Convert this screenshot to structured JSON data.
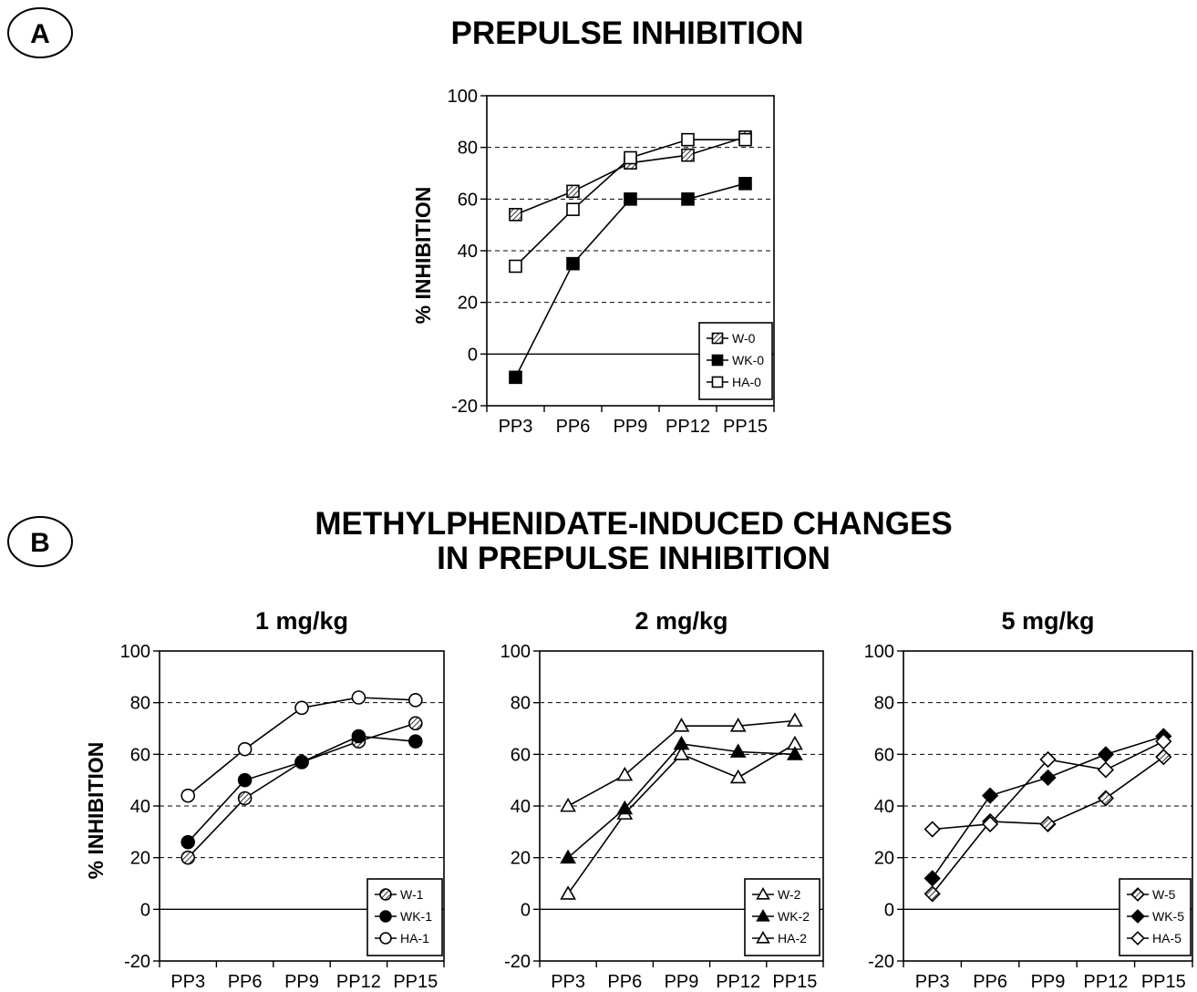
{
  "panel_a": {
    "letter": "A",
    "title": "PREPULSE INHIBITION"
  },
  "panel_b": {
    "letter": "B",
    "title_line1": "METHYLPHENIDATE-INDUCED CHANGES",
    "title_line2": "IN PREPULSE INHIBITION"
  },
  "chart_data": [
    {
      "id": "A",
      "type": "line",
      "title": "",
      "ylabel": "% INHIBITION",
      "xlabel": "",
      "categories": [
        "PP3",
        "PP6",
        "PP9",
        "PP12",
        "PP15"
      ],
      "ylim": [
        -20,
        100
      ],
      "yticks": [
        -20,
        0,
        20,
        40,
        60,
        80,
        100
      ],
      "grid": "horizontal dashed",
      "legend": "bottom-right",
      "series": [
        {
          "name": "W-0",
          "marker": "square-hatched",
          "values": [
            54,
            63,
            74,
            77,
            84
          ]
        },
        {
          "name": "WK-0",
          "marker": "square-filled",
          "values": [
            -9,
            35,
            60,
            60,
            66
          ]
        },
        {
          "name": "HA-0",
          "marker": "square-open",
          "values": [
            34,
            56,
            76,
            83,
            83
          ]
        }
      ]
    },
    {
      "id": "B1",
      "type": "line",
      "title": "1 mg/kg",
      "ylabel": "% INHIBITION",
      "xlabel": "",
      "categories": [
        "PP3",
        "PP6",
        "PP9",
        "PP12",
        "PP15"
      ],
      "ylim": [
        -20,
        100
      ],
      "yticks": [
        -20,
        0,
        20,
        40,
        60,
        80,
        100
      ],
      "grid": "horizontal dashed",
      "legend": "bottom-right",
      "series": [
        {
          "name": "W-1",
          "marker": "circle-hatched",
          "values": [
            20,
            43,
            57,
            65,
            72
          ]
        },
        {
          "name": "WK-1",
          "marker": "circle-filled",
          "values": [
            26,
            50,
            57,
            67,
            65
          ]
        },
        {
          "name": "HA-1",
          "marker": "circle-open",
          "values": [
            44,
            62,
            78,
            82,
            81
          ]
        }
      ]
    },
    {
      "id": "B2",
      "type": "line",
      "title": "2 mg/kg",
      "ylabel": "",
      "xlabel": "",
      "categories": [
        "PP3",
        "PP6",
        "PP9",
        "PP12",
        "PP15"
      ],
      "ylim": [
        -20,
        100
      ],
      "yticks": [
        -20,
        0,
        20,
        40,
        60,
        80,
        100
      ],
      "grid": "horizontal dashed",
      "legend": "bottom-right",
      "series": [
        {
          "name": "W-2",
          "marker": "triangle-open",
          "values": [
            6,
            37,
            60,
            51,
            64
          ]
        },
        {
          "name": "WK-2",
          "marker": "triangle-filled",
          "values": [
            20,
            39,
            64,
            61,
            60
          ]
        },
        {
          "name": "HA-2",
          "marker": "triangle-open",
          "values": [
            40,
            52,
            71,
            71,
            73
          ]
        }
      ]
    },
    {
      "id": "B3",
      "type": "line",
      "title": "5 mg/kg",
      "ylabel": "",
      "xlabel": "",
      "categories": [
        "PP3",
        "PP6",
        "PP9",
        "PP12",
        "PP15"
      ],
      "ylim": [
        -20,
        100
      ],
      "yticks": [
        -20,
        0,
        20,
        40,
        60,
        80,
        100
      ],
      "grid": "horizontal dashed",
      "legend": "bottom-right",
      "series": [
        {
          "name": "W-5",
          "marker": "diamond-hatched",
          "values": [
            6,
            34,
            33,
            43,
            59
          ]
        },
        {
          "name": "WK-5",
          "marker": "diamond-filled",
          "values": [
            12,
            44,
            51,
            60,
            67
          ]
        },
        {
          "name": "HA-5",
          "marker": "diamond-open",
          "values": [
            31,
            33,
            58,
            54,
            65
          ]
        }
      ]
    }
  ]
}
